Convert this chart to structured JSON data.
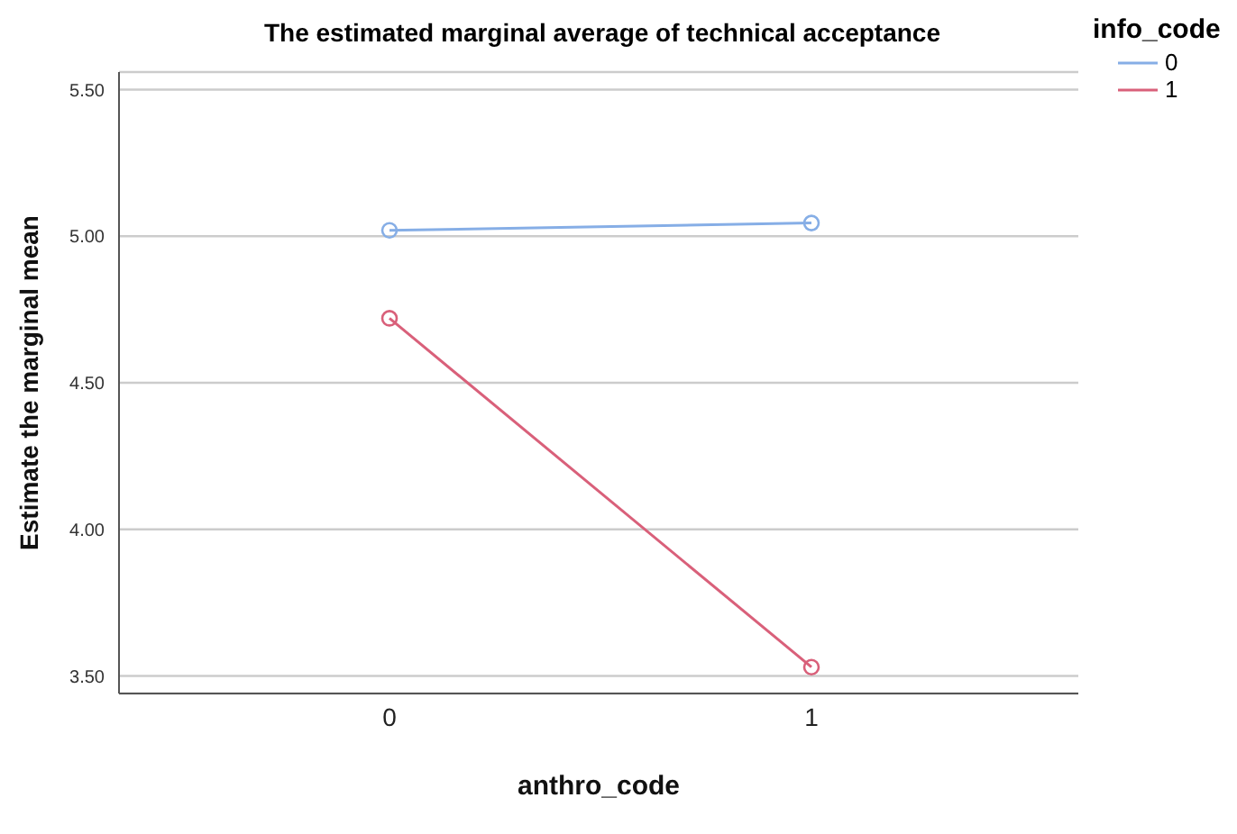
{
  "chart_data": {
    "type": "line",
    "title": "The estimated marginal average of technical acceptance",
    "xlabel": "anthro_code",
    "ylabel": "Estimate the marginal mean",
    "legend_title": "info_code",
    "categories": [
      "0",
      "1"
    ],
    "series": [
      {
        "name": "0",
        "color": "#86aee6",
        "values": [
          5.02,
          5.045
        ]
      },
      {
        "name": "1",
        "color": "#d9607a",
        "values": [
          4.72,
          3.53
        ]
      }
    ],
    "ylim": [
      3.44,
      5.56
    ],
    "yticks": [
      {
        "value": 3.5,
        "label": "3.50"
      },
      {
        "value": 4,
        "label": "4.00"
      },
      {
        "value": 4.5,
        "label": "4.50"
      },
      {
        "value": 5,
        "label": "5.00"
      },
      {
        "value": 5.5,
        "label": "5.50"
      }
    ],
    "grid": "y",
    "legend": "top right",
    "marker": "circle",
    "line_style": "solid"
  }
}
